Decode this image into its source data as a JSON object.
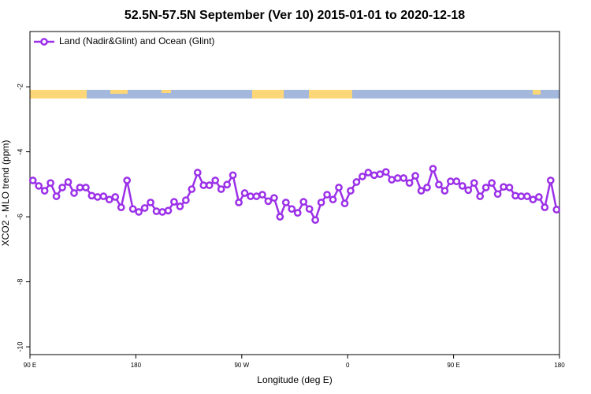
{
  "chart_data": {
    "type": "line",
    "title": "52.5N-57.5N September (Ver 10)   2015-01-01 to 2020-12-18",
    "x_label": "Longitude (deg E)",
    "y_label": "XCO2 - MLO trend (ppm)",
    "legend": "upper left",
    "xlim": [
      90,
      540
    ],
    "ylim": [
      -10.24,
      -0.3
    ],
    "xticks": [
      {
        "value": 90,
        "label": "90 E"
      },
      180,
      {
        "value": 270,
        "label": "90 W"
      },
      {
        "value": 360,
        "label": "0"
      },
      {
        "value": 450,
        "label": "90 E"
      },
      {
        "value": 540,
        "label": "180"
      }
    ],
    "yticks": [
      -10,
      -8,
      -6,
      -4,
      -2
    ],
    "x": [
      92.5,
      97.5,
      102.5,
      107.5,
      112.5,
      117.5,
      122.5,
      127.5,
      132.5,
      137.5,
      142.5,
      147.5,
      152.5,
      157.5,
      162.5,
      167.5,
      172.5,
      177.5,
      182.5,
      187.5,
      192.5,
      197.5,
      202.5,
      207.5,
      212.5,
      217.5,
      222.5,
      227.5,
      232.5,
      237.5,
      242.5,
      247.5,
      252.5,
      257.5,
      262.5,
      267.5,
      272.5,
      277.5,
      282.5,
      287.5,
      292.5,
      297.5,
      302.5,
      307.5,
      312.5,
      317.5,
      322.5,
      327.5,
      332.5,
      337.5,
      342.5,
      347.5,
      352.5,
      357.5,
      362.5,
      367.5,
      372.5,
      377.5,
      382.5,
      387.5,
      392.5,
      397.5,
      402.5,
      407.5,
      412.5,
      417.5,
      422.5,
      427.5,
      432.5,
      437.5,
      442.5,
      447.5,
      452.5,
      457.5,
      462.5,
      467.5,
      472.5,
      477.5,
      482.5,
      487.5,
      492.5,
      497.5,
      502.5,
      507.5,
      512.5,
      517.5,
      522.5,
      527.5,
      532.5,
      537.5
    ],
    "series": [
      {
        "name": "Land (Nadir&Glint) and Ocean (Glint)",
        "color": "#9b30e8",
        "values": [
          -4.88,
          -5.05,
          -5.2,
          -4.96,
          -5.37,
          -5.1,
          -4.93,
          -5.27,
          -5.1,
          -5.1,
          -5.35,
          -5.39,
          -5.37,
          -5.47,
          -5.39,
          -5.71,
          -4.88,
          -5.76,
          -5.85,
          -5.73,
          -5.56,
          -5.83,
          -5.85,
          -5.81,
          -5.54,
          -5.68,
          -5.49,
          -5.15,
          -4.64,
          -5.03,
          -5.03,
          -4.88,
          -5.15,
          -5.01,
          -4.72,
          -5.56,
          -5.27,
          -5.37,
          -5.37,
          -5.32,
          -5.52,
          -5.42,
          -6.0,
          -5.56,
          -5.76,
          -5.88,
          -5.54,
          -5.76,
          -6.1,
          -5.56,
          -5.32,
          -5.47,
          -5.1,
          -5.59,
          -5.2,
          -4.93,
          -4.76,
          -4.64,
          -4.72,
          -4.69,
          -4.62,
          -4.86,
          -4.81,
          -4.81,
          -4.96,
          -4.74,
          -5.2,
          -5.1,
          -4.52,
          -5.01,
          -5.2,
          -4.91,
          -4.91,
          -5.05,
          -5.18,
          -4.96,
          -5.37,
          -5.1,
          -4.96,
          -5.3,
          -5.08,
          -5.1,
          -5.35,
          -5.37,
          -5.37,
          -5.47,
          -5.39,
          -5.71,
          -4.88,
          -5.78
        ]
      }
    ]
  }
}
